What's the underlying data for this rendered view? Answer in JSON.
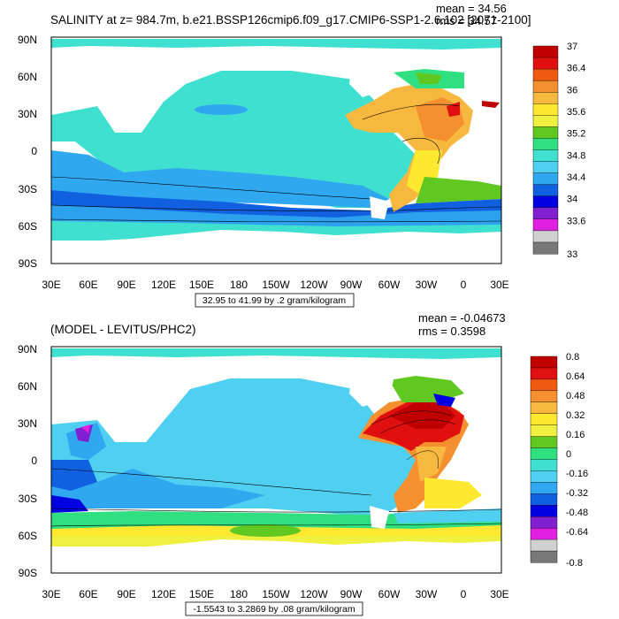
{
  "top_panel": {
    "title": "SALINITY at z= 984.7m, b.e21.BSSP126cmip6.f09_g17.CMIP6-SSP1-2.6.102 [2071-2100]",
    "mean": "mean = 34.56",
    "rms": "rms = 34.57",
    "contour_info": "32.95 to 41.99 by .2 gram/kilogram",
    "colorbar_labels": [
      "37",
      "36.4",
      "36",
      "35.6",
      "35.2",
      "34.8",
      "34.4",
      "34",
      "33.6",
      "33"
    ]
  },
  "bottom_panel": {
    "title": "(MODEL - LEVITUS/PHC2)",
    "mean": "mean = -0.04673",
    "rms": "rms = 0.3598",
    "contour_info": "-1.5543 to 3.2869 by .08 gram/kilogram",
    "colorbar_labels": [
      "0.8",
      "0.64",
      "0.48",
      "0.32",
      "0.16",
      "0",
      "-0.16",
      "-0.32",
      "-0.48",
      "-0.64",
      "-0.8"
    ]
  },
  "lat_labels": [
    "90N",
    "60N",
    "30N",
    "0",
    "30S",
    "60S",
    "90S"
  ],
  "lon_labels": [
    "30E",
    "60E",
    "90E",
    "120E",
    "150E",
    "180",
    "150W",
    "120W",
    "90W",
    "60W",
    "30W",
    "0",
    "30E"
  ],
  "colors": {
    "top_colorbar": [
      "#c00000",
      "#e01010",
      "#ee5a10",
      "#f49030",
      "#f7b840",
      "#ffe830",
      "#f0f040",
      "#60c820",
      "#30e080",
      "#40e0d0",
      "#50d0f0",
      "#30a8f0",
      "#1060e0",
      "#0000e0",
      "#8020d0",
      "#e020e0",
      "#d0d0d0",
      "#787878"
    ],
    "bottom_colorbar": [
      "#c00000",
      "#e01010",
      "#ee5a10",
      "#f49030",
      "#f7b840",
      "#ffe830",
      "#f0f040",
      "#60c820",
      "#30e080",
      "#40e0d0",
      "#50d0f0",
      "#30a8f0",
      "#1060e0",
      "#0000e0",
      "#8020d0",
      "#e020e0",
      "#d0d0d0",
      "#787878"
    ]
  }
}
